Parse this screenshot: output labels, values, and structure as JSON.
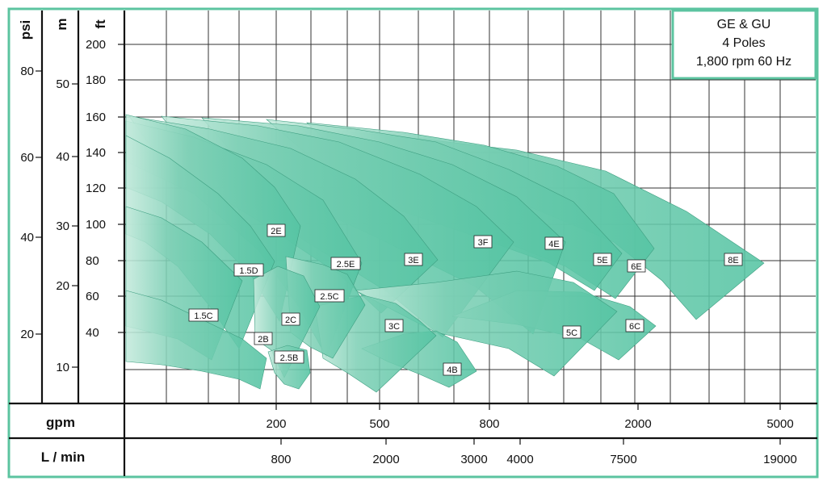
{
  "chart_data": {
    "type": "area",
    "legend": {
      "lines": [
        "GE & GU",
        "4 Poles",
        "1,800 rpm 60 Hz"
      ],
      "placement": "top-right"
    },
    "colors": {
      "frame": "#5cc4a0",
      "curve_fill": "#55c4a3",
      "curve_fill_light": "#b4e4d4",
      "curve_edge": "#3d9e80",
      "grid": "#333333"
    },
    "axes": {
      "psi": {
        "label": "psi",
        "ticks": [
          "80",
          "60",
          "40",
          "20"
        ]
      },
      "m": {
        "label": "m",
        "ticks": [
          "50",
          "40",
          "30",
          "20",
          "10"
        ]
      },
      "ft": {
        "label": "ft",
        "ticks": [
          "200",
          "180",
          "160",
          "140",
          "120",
          "100",
          "80",
          "60",
          "40"
        ]
      },
      "gpm": {
        "label": "gpm",
        "ticks": [
          "200",
          "500",
          "800",
          "2000",
          "5000"
        ]
      },
      "lmin": {
        "label": "L / min",
        "ticks": [
          "800",
          "2000",
          "3000",
          "4000",
          "7500",
          "19000"
        ]
      }
    },
    "series": [
      {
        "name": "1.5C",
        "label": "1.5C"
      },
      {
        "name": "1.5D",
        "label": "1.5D"
      },
      {
        "name": "2B",
        "label": "2B"
      },
      {
        "name": "2C",
        "label": "2C"
      },
      {
        "name": "2E",
        "label": "2E"
      },
      {
        "name": "2.5B",
        "label": "2.5B"
      },
      {
        "name": "2.5C",
        "label": "2.5C"
      },
      {
        "name": "2.5E",
        "label": "2.5E"
      },
      {
        "name": "3C",
        "label": "3C"
      },
      {
        "name": "3E",
        "label": "3E"
      },
      {
        "name": "3F",
        "label": "3F"
      },
      {
        "name": "4B",
        "label": "4B"
      },
      {
        "name": "4E",
        "label": "4E"
      },
      {
        "name": "5C",
        "label": "5C"
      },
      {
        "name": "5E",
        "label": "5E"
      },
      {
        "name": "6C",
        "label": "6C"
      },
      {
        "name": "6E",
        "label": "6E"
      },
      {
        "name": "8E",
        "label": "8E"
      }
    ]
  }
}
